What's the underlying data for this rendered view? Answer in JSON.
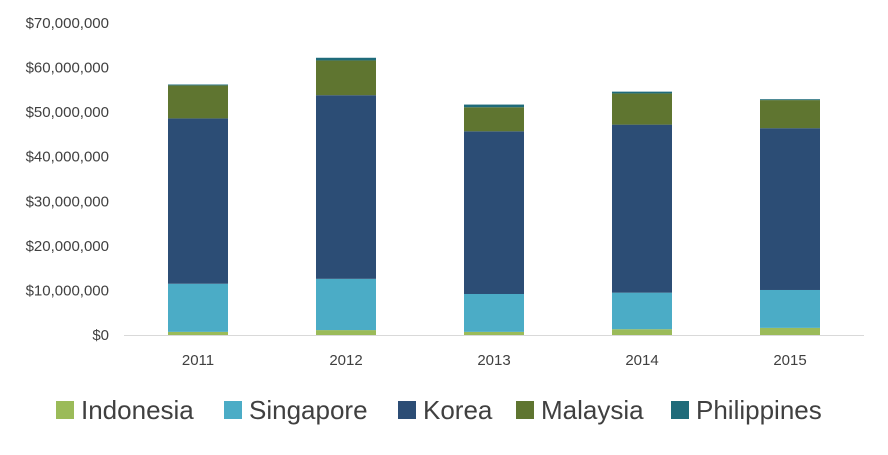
{
  "chart_data": {
    "type": "bar",
    "stacked": true,
    "categories": [
      "2011",
      "2012",
      "2013",
      "2014",
      "2015"
    ],
    "series": [
      {
        "name": "Indonesia",
        "color": "#9bbb59",
        "values": [
          700000,
          1100000,
          700000,
          1300000,
          1600000
        ]
      },
      {
        "name": "Singapore",
        "color": "#4bacc6",
        "values": [
          10800000,
          11500000,
          8500000,
          8200000,
          8500000
        ]
      },
      {
        "name": "Korea",
        "color": "#2c4d75",
        "values": [
          37100000,
          41200000,
          36500000,
          37700000,
          36300000
        ]
      },
      {
        "name": "Malaysia",
        "color": "#5f7530",
        "values": [
          7400000,
          7800000,
          5400000,
          7000000,
          6300000
        ]
      },
      {
        "name": "Philippines",
        "color": "#1f6b7a",
        "values": [
          200000,
          600000,
          600000,
          400000,
          200000
        ]
      }
    ],
    "y_ticks": [
      "$0",
      "$10,000,000",
      "$20,000,000",
      "$30,000,000",
      "$40,000,000",
      "$50,000,000",
      "$60,000,000",
      "$70,000,000"
    ],
    "ylim": [
      0,
      70000000
    ],
    "title": "",
    "xlabel": "",
    "ylabel": "",
    "grid": false,
    "legend_position": "bottom"
  }
}
